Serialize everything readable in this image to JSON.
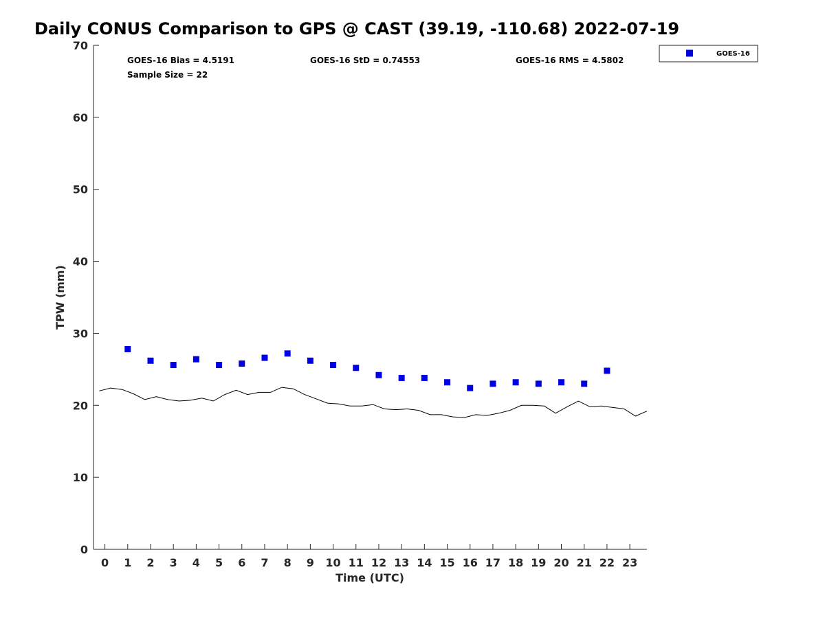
{
  "title": "Daily CONUS Comparison to GPS @ CAST (39.19, -110.68) 2022-07-19",
  "stats": {
    "bias": "GOES-16 Bias = 4.5191",
    "std": "GOES-16 StD = 0.74553",
    "rms": "GOES-16 RMS = 4.5802",
    "sample": "Sample Size = 22"
  },
  "colors": {
    "goes": "#0000e6",
    "gps_line": "#000000",
    "axes": "#262626"
  },
  "chart_data": {
    "type": "scatter",
    "title": "Daily CONUS Comparison to GPS @ CAST (39.19, -110.68) 2022-07-19",
    "xlabel": "Time (UTC)",
    "ylabel": "TPW (mm)",
    "xlim": [
      -0.5,
      23.75
    ],
    "ylim": [
      0,
      70
    ],
    "xticks": [
      0,
      1,
      2,
      3,
      4,
      5,
      6,
      7,
      8,
      9,
      10,
      11,
      12,
      13,
      14,
      15,
      16,
      17,
      18,
      19,
      20,
      21,
      22,
      23
    ],
    "yticks": [
      0,
      10,
      20,
      30,
      40,
      50,
      60,
      70
    ],
    "grid": false,
    "legend": {
      "position": "outside-top-right",
      "entries": [
        "GOES-16"
      ]
    },
    "series": [
      {
        "name": "GOES-16",
        "marker": "square",
        "x": [
          1,
          2,
          3,
          4,
          5,
          6,
          7,
          8,
          9,
          10,
          11,
          12,
          13,
          14,
          15,
          16,
          17,
          18,
          19,
          20,
          21,
          22
        ],
        "y": [
          27.8,
          26.2,
          25.6,
          26.4,
          25.6,
          25.8,
          26.6,
          27.2,
          26.2,
          25.6,
          25.2,
          24.2,
          23.8,
          23.8,
          23.2,
          22.4,
          23.0,
          23.2,
          23.0,
          23.2,
          23.0,
          24.8
        ]
      },
      {
        "marker": "line",
        "x": [
          -0.25,
          0.25,
          0.75,
          1.25,
          1.75,
          2.25,
          2.75,
          3.25,
          3.75,
          4.25,
          4.75,
          5.25,
          5.75,
          6.25,
          6.75,
          7.25,
          7.75,
          8.25,
          8.75,
          9.25,
          9.75,
          10.25,
          10.75,
          11.25,
          11.75,
          12.25,
          12.75,
          13.25,
          13.75,
          14.25,
          14.75,
          15.25,
          15.75,
          16.25,
          16.75,
          17.25,
          17.75,
          18.25,
          18.75,
          19.25,
          19.75,
          20.25,
          20.75,
          21.25,
          21.75,
          22.25,
          22.75,
          23.25,
          23.75
        ],
        "y": [
          22.0,
          22.4,
          22.2,
          21.6,
          20.8,
          21.2,
          20.8,
          20.6,
          20.7,
          21.0,
          20.6,
          21.5,
          22.1,
          21.5,
          21.8,
          21.8,
          22.5,
          22.3,
          21.5,
          20.9,
          20.3,
          20.2,
          19.9,
          19.9,
          20.1,
          19.5,
          19.4,
          19.5,
          19.3,
          18.7,
          18.7,
          18.4,
          18.3,
          18.7,
          18.6,
          18.9,
          19.3,
          20.0,
          20.0,
          19.9,
          18.9,
          19.8,
          20.6,
          19.8,
          19.9,
          19.7,
          19.5,
          18.5,
          19.2
        ]
      }
    ]
  }
}
